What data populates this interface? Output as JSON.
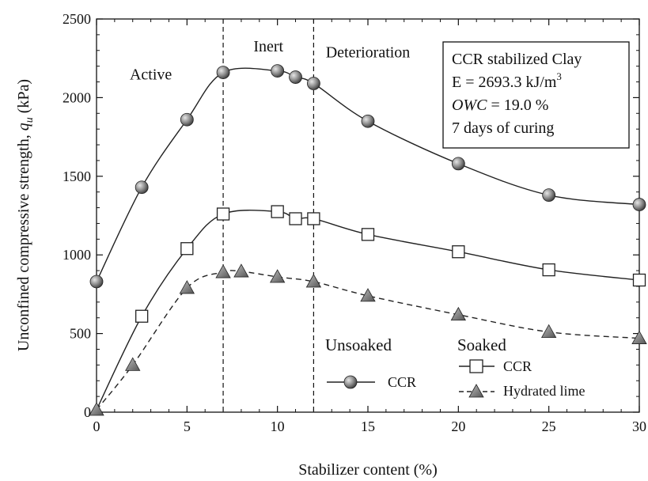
{
  "chart_data": {
    "type": "line",
    "xlabel": "Stabilizer content (%)",
    "ylabel_main": "Unconfined compressive strength, ",
    "ylabel_var": "q",
    "ylabel_sub": "u",
    "ylabel_unit": " (kPa)",
    "xlim": [
      0,
      30
    ],
    "ylim": [
      0,
      2500
    ],
    "xticks": [
      0,
      5,
      10,
      15,
      20,
      25,
      30
    ],
    "yticks": [
      0,
      500,
      1000,
      1500,
      2000,
      2500
    ],
    "grid": false,
    "zone_dividers": [
      7,
      12
    ],
    "zones": [
      {
        "label": "Active",
        "x": 3,
        "y": 2115
      },
      {
        "label": "Inert",
        "x": 9.5,
        "y": 2295
      },
      {
        "label": "Deterioration",
        "x": 15,
        "y": 2255
      }
    ],
    "series": [
      {
        "name": "CCR",
        "group": "Unsoaked",
        "marker": "circle",
        "line": "solid",
        "x": [
          0,
          2.5,
          5,
          7,
          10,
          11,
          12,
          15,
          20,
          25,
          30
        ],
        "y": [
          830,
          1430,
          1860,
          2160,
          2170,
          2130,
          2090,
          1850,
          1580,
          1380,
          1320
        ]
      },
      {
        "name": "CCR",
        "group": "Soaked",
        "marker": "square",
        "line": "solid",
        "x": [
          2.5,
          5,
          7,
          10,
          11,
          12,
          15,
          20,
          25,
          30
        ],
        "y": [
          610,
          1040,
          1260,
          1275,
          1230,
          1230,
          1130,
          1020,
          905,
          840
        ]
      },
      {
        "name": "Hydrated lime",
        "group": "Soaked",
        "marker": "triangle",
        "line": "dashed",
        "x": [
          0,
          2,
          5,
          7,
          8,
          10,
          12,
          15,
          20,
          25,
          30
        ],
        "y": [
          15,
          300,
          790,
          890,
          895,
          860,
          830,
          740,
          620,
          510,
          470
        ]
      }
    ],
    "info_box": {
      "line1": "CCR stabilized Clay",
      "line2_prefix": "E = 2693.3 kJ/m",
      "line2_sup": "3",
      "line3_italic": "OWC",
      "line3_rest": " = 19.0 %",
      "line4": "7 days of curing"
    },
    "legend": {
      "unsoaked_title": "Unsoaked",
      "soaked_title": "Soaked",
      "unsoaked_ccr": "CCR",
      "soaked_ccr": "CCR",
      "soaked_lime": "Hydrated lime",
      "placement": "bottom-right"
    },
    "colors": {
      "curve": "#222222",
      "circle_fill": "#8c8c8c",
      "triangle_fill": "#7a7a7a",
      "square_fill": "#ffffff"
    }
  }
}
